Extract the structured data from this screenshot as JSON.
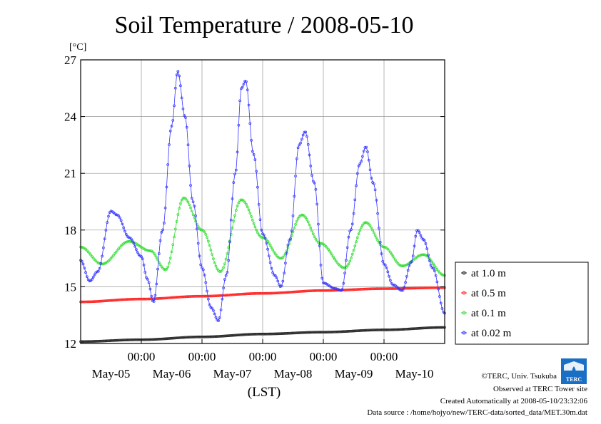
{
  "chart_data": {
    "type": "line",
    "title": "Soil Temperature / 2008-05-10",
    "ylabel": "[°C]",
    "xlabel": "(LST)",
    "ylim": [
      12,
      27
    ],
    "yticks": [
      12,
      15,
      18,
      21,
      24,
      27
    ],
    "xlim_days": [
      0,
      6
    ],
    "xticks_time": [
      {
        "day": 1,
        "label": "00:00"
      },
      {
        "day": 2,
        "label": "00:00"
      },
      {
        "day": 3,
        "label": "00:00"
      },
      {
        "day": 4,
        "label": "00:00"
      },
      {
        "day": 5,
        "label": "00:00"
      }
    ],
    "xticks_date": [
      {
        "day": 0.5,
        "label": "May-05"
      },
      {
        "day": 1.5,
        "label": "May-06"
      },
      {
        "day": 2.5,
        "label": "May-07"
      },
      {
        "day": 3.5,
        "label": "May-08"
      },
      {
        "day": 4.5,
        "label": "May-09"
      },
      {
        "day": 5.5,
        "label": "May-10"
      }
    ],
    "grid": true,
    "legend_position": "right",
    "series": [
      {
        "name": "at 1.0 m",
        "color": "#222222",
        "points": [
          [
            0,
            12.1
          ],
          [
            1,
            12.2
          ],
          [
            2,
            12.35
          ],
          [
            3,
            12.5
          ],
          [
            4,
            12.6
          ],
          [
            5,
            12.72
          ],
          [
            6,
            12.85
          ]
        ]
      },
      {
        "name": "at 0.5 m",
        "color": "#ff2020",
        "points": [
          [
            0,
            14.2
          ],
          [
            1,
            14.35
          ],
          [
            2,
            14.5
          ],
          [
            3,
            14.65
          ],
          [
            4,
            14.8
          ],
          [
            5,
            14.9
          ],
          [
            6,
            14.95
          ]
        ]
      },
      {
        "name": "at 0.1 m",
        "color": "#33dd33",
        "points": [
          [
            0,
            17.1
          ],
          [
            0.35,
            16.2
          ],
          [
            0.8,
            17.4
          ],
          [
            1.15,
            16.9
          ],
          [
            1.4,
            15.9
          ],
          [
            1.7,
            19.7
          ],
          [
            2.0,
            18.0
          ],
          [
            2.3,
            15.8
          ],
          [
            2.65,
            19.6
          ],
          [
            3.0,
            17.6
          ],
          [
            3.3,
            16.5
          ],
          [
            3.65,
            18.8
          ],
          [
            3.95,
            17.3
          ],
          [
            4.35,
            16.0
          ],
          [
            4.7,
            18.4
          ],
          [
            5.0,
            17.1
          ],
          [
            5.3,
            16.1
          ],
          [
            5.65,
            16.7
          ],
          [
            6,
            15.6
          ]
        ]
      },
      {
        "name": "at 0.02 m",
        "color": "#3333ff",
        "points": [
          [
            0,
            16.4
          ],
          [
            0.15,
            15.3
          ],
          [
            0.28,
            15.8
          ],
          [
            0.5,
            19.0
          ],
          [
            0.6,
            18.8
          ],
          [
            0.8,
            17.6
          ],
          [
            1.0,
            16.6
          ],
          [
            1.1,
            15.4
          ],
          [
            1.2,
            14.2
          ],
          [
            1.35,
            18.0
          ],
          [
            1.5,
            23.5
          ],
          [
            1.6,
            26.4
          ],
          [
            1.72,
            24.0
          ],
          [
            1.85,
            19.5
          ],
          [
            2.0,
            16.0
          ],
          [
            2.15,
            13.9
          ],
          [
            2.27,
            13.2
          ],
          [
            2.4,
            15.6
          ],
          [
            2.55,
            21.0
          ],
          [
            2.65,
            25.5
          ],
          [
            2.72,
            25.9
          ],
          [
            2.85,
            22.0
          ],
          [
            3.0,
            17.8
          ],
          [
            3.2,
            15.6
          ],
          [
            3.3,
            15.0
          ],
          [
            3.45,
            17.5
          ],
          [
            3.6,
            22.5
          ],
          [
            3.7,
            23.2
          ],
          [
            3.85,
            20.5
          ],
          [
            4.0,
            15.2
          ],
          [
            4.2,
            14.9
          ],
          [
            4.3,
            14.8
          ],
          [
            4.45,
            18.0
          ],
          [
            4.6,
            21.5
          ],
          [
            4.7,
            22.4
          ],
          [
            4.82,
            20.5
          ],
          [
            5.0,
            16.2
          ],
          [
            5.15,
            15.1
          ],
          [
            5.3,
            14.8
          ],
          [
            5.45,
            16.3
          ],
          [
            5.55,
            18.0
          ],
          [
            5.65,
            17.5
          ],
          [
            5.8,
            16.0
          ],
          [
            6.0,
            13.6
          ]
        ]
      }
    ]
  },
  "credits": {
    "copyright": "©TERC, Univ. Tsukuba",
    "observed": "Observed at TERC Tower site",
    "created": "Created Automatically at 2008-05-10/23:32:06",
    "source": "Data source : /home/hojyo/new/TERC-data/sorted_data/MET.30m.dat",
    "logo_text": "TERC"
  }
}
